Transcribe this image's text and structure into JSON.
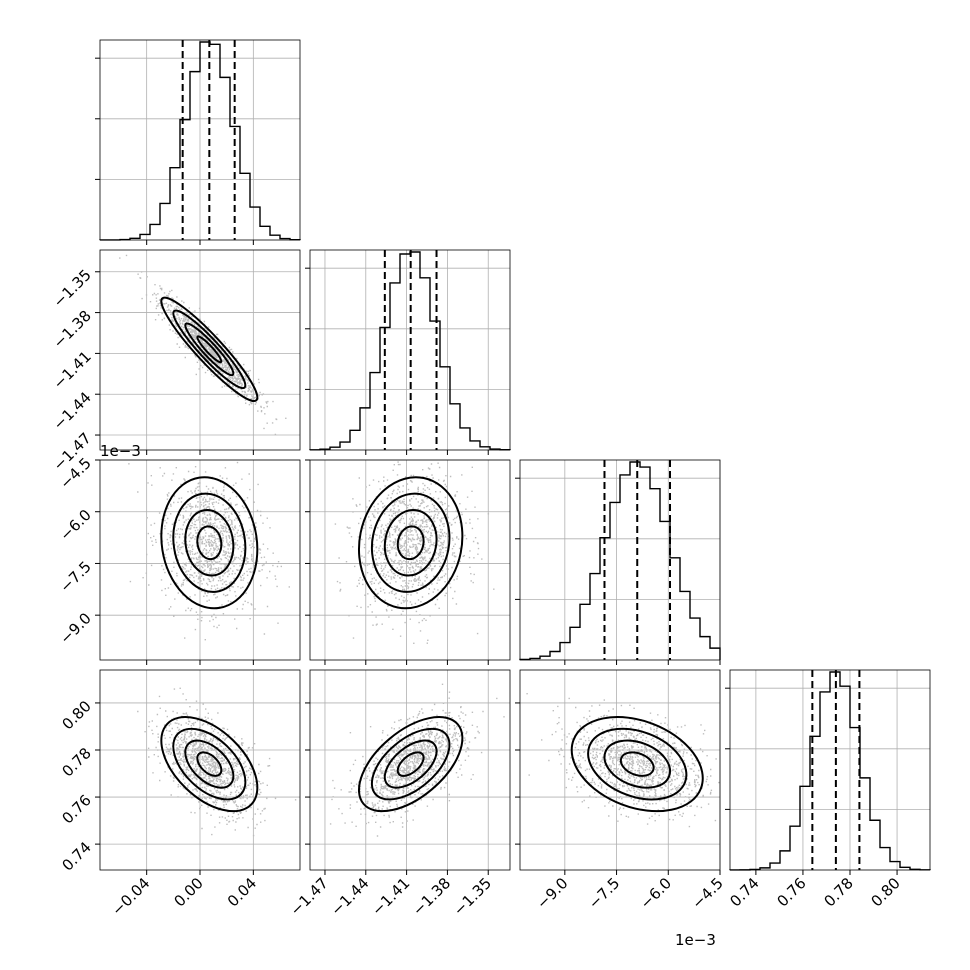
{
  "chart_data": {
    "type": "corner",
    "grid": true,
    "params": [
      {
        "ticks": [
          -0.04,
          0.0,
          0.04
        ],
        "tick_labels": [
          "−0.04",
          "0.00",
          "0.04"
        ],
        "range": [
          -0.075,
          0.075
        ],
        "mean": 0.007,
        "std": 0.018,
        "quantiles": [
          -0.013,
          0.007,
          0.026
        ],
        "offset_text": ""
      },
      {
        "ticks": [
          -1.47,
          -1.44,
          -1.41,
          -1.38,
          -1.35
        ],
        "tick_labels": [
          "−1.47",
          "−1.44",
          "−1.41",
          "−1.38",
          "−1.35"
        ],
        "range": [
          -1.481,
          -1.334
        ],
        "mean": -1.407,
        "std": 0.019,
        "quantiles": [
          -1.426,
          -1.407,
          -1.388
        ],
        "offset_text": ""
      },
      {
        "ticks": [
          -9.0,
          -7.5,
          -6.0,
          -4.5
        ],
        "tick_labels": [
          "−9.0",
          "−7.5",
          "−6.0",
          "−4.5"
        ],
        "range": [
          -10.3,
          -4.5
        ],
        "mean": -6.9,
        "std": 0.95,
        "quantiles": [
          -7.85,
          -6.9,
          -5.95
        ],
        "offset_text": "1e−3"
      },
      {
        "ticks": [
          0.74,
          0.76,
          0.78,
          0.8
        ],
        "tick_labels": [
          "0.74",
          "0.76",
          "0.78",
          "0.80"
        ],
        "range": [
          0.729,
          0.814
        ],
        "mean": 0.774,
        "std": 0.01,
        "quantiles": [
          0.764,
          0.774,
          0.784
        ],
        "offset_text": ""
      }
    ],
    "correlations": [
      {
        "pair": [
          1,
          0
        ],
        "rho": -0.93
      },
      {
        "pair": [
          2,
          0
        ],
        "rho": -0.1
      },
      {
        "pair": [
          2,
          1
        ],
        "rho": 0.1
      },
      {
        "pair": [
          3,
          0
        ],
        "rho": -0.5
      },
      {
        "pair": [
          3,
          1
        ],
        "rho": 0.55
      },
      {
        "pair": [
          3,
          2
        ],
        "rho": -0.3
      }
    ],
    "histogram_bins": 20,
    "contour_levels": [
      0.5,
      1.0,
      1.5,
      2.0
    ]
  }
}
